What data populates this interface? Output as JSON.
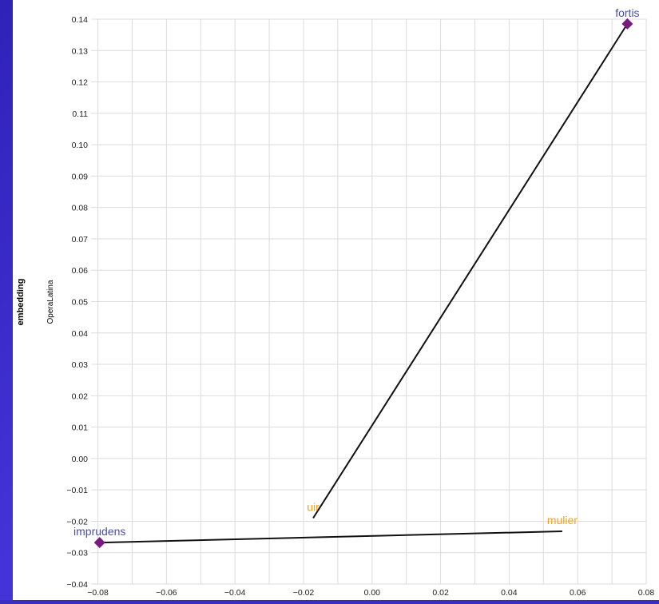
{
  "chart_data": {
    "type": "scatter",
    "title": "",
    "ylabel_outer": "embedding",
    "ylabel_inner": "OperaLatina",
    "xlim": [
      -0.082,
      0.08
    ],
    "ylim": [
      -0.04,
      0.14
    ],
    "x_ticks": [
      "−0.08",
      "−0.06",
      "−0.04",
      "−0.02",
      "0.00",
      "0.02",
      "0.04",
      "0.06",
      "0.08"
    ],
    "x_tick_values": [
      -0.08,
      -0.06,
      -0.04,
      -0.02,
      0.0,
      0.02,
      0.04,
      0.06,
      0.08
    ],
    "y_ticks": [
      "−0.04",
      "−0.03",
      "−0.02",
      "−0.01",
      "0.00",
      "0.01",
      "0.02",
      "0.03",
      "0.04",
      "0.05",
      "0.06",
      "0.07",
      "0.08",
      "0.09",
      "0.10",
      "0.11",
      "0.12",
      "0.13",
      "0.14"
    ],
    "y_tick_values": [
      -0.04,
      -0.03,
      -0.02,
      -0.01,
      0.0,
      0.01,
      0.02,
      0.03,
      0.04,
      0.05,
      0.06,
      0.07,
      0.08,
      0.09,
      0.1,
      0.11,
      0.12,
      0.13,
      0.14
    ],
    "grid": true,
    "points": [
      {
        "label": "fortis",
        "x": 0.0745,
        "y": 0.1385,
        "marker": "diamond",
        "label_color": "#4b4fa3",
        "marker_color": "#7a1a7e"
      },
      {
        "label": "imprudens",
        "x": -0.0795,
        "y": -0.0268,
        "marker": "diamond",
        "label_color": "#4b4fa3",
        "marker_color": "#7a1a7e"
      },
      {
        "label": "uir",
        "x": -0.0172,
        "y": -0.019,
        "marker": "none",
        "label_color": "#f5a31a"
      },
      {
        "label": "mulier",
        "x": 0.0555,
        "y": -0.0232,
        "marker": "none",
        "label_color": "#f5a31a"
      }
    ],
    "segments": [
      {
        "from": "uir",
        "to": "fortis"
      },
      {
        "from": "imprudens",
        "to": "mulier"
      }
    ],
    "line_color": "#111111",
    "grid_color": "#dcdcdc",
    "background": "#ffffff",
    "page_background": "#3a2ec0"
  }
}
